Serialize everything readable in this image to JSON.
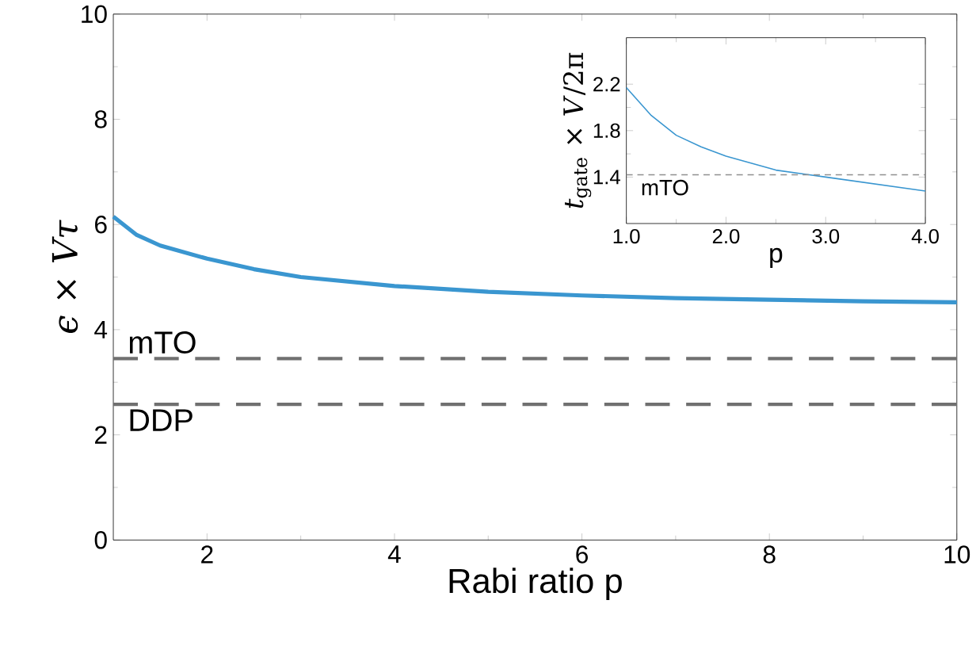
{
  "chart_data": [
    {
      "type": "line",
      "xlabel": "Rabi ratio p",
      "ylabel": "*ϵ* × *Vτ*",
      "x": [
        1,
        1.25,
        1.5,
        2,
        2.5,
        3,
        4,
        5,
        6,
        7,
        8,
        9,
        10
      ],
      "series": [
        {
          "color": "#3a96d0",
          "values": [
            6.15,
            5.8,
            5.6,
            5.35,
            5.15,
            5.0,
            4.83,
            4.72,
            4.65,
            4.6,
            4.57,
            4.54,
            4.52
          ]
        }
      ],
      "xlim": [
        1,
        10
      ],
      "ylim": [
        0,
        10
      ],
      "xticks": [
        2,
        4,
        6,
        8,
        10
      ],
      "yticks": [
        0,
        2,
        4,
        6,
        8,
        10
      ],
      "ref_lines": [
        {
          "axis": "y",
          "value": 3.45,
          "label": "mTO",
          "color": "#707070",
          "line_style": "dashed"
        },
        {
          "axis": "y",
          "value": 2.58,
          "label": "DDP",
          "color": "#707070",
          "line_style": "dashed"
        }
      ]
    },
    {
      "type": "line",
      "xlabel": "p",
      "ylabel": "*t*$_{gate}$ × *V*/2π",
      "x": [
        1,
        1.25,
        1.5,
        1.75,
        2,
        2.5,
        3,
        3.5,
        4
      ],
      "series": [
        {
          "color": "#3a96d0",
          "values": [
            2.17,
            1.93,
            1.76,
            1.66,
            1.58,
            1.46,
            1.4,
            1.34,
            1.28
          ]
        }
      ],
      "xlim": [
        1,
        4
      ],
      "ylim": [
        1.0,
        2.6
      ],
      "xticks": [
        {
          "value": 1,
          "label": "1.0"
        },
        {
          "value": 2,
          "label": "2.0"
        },
        {
          "value": 3,
          "label": "3.0"
        },
        {
          "value": 4,
          "label": "4.0"
        }
      ],
      "yticks": [
        1.4,
        1.8,
        2.2
      ],
      "ref_lines": [
        {
          "axis": "y",
          "value": 1.42,
          "label": "mTO",
          "color": "#909090",
          "line_style": "dashed"
        }
      ]
    }
  ]
}
